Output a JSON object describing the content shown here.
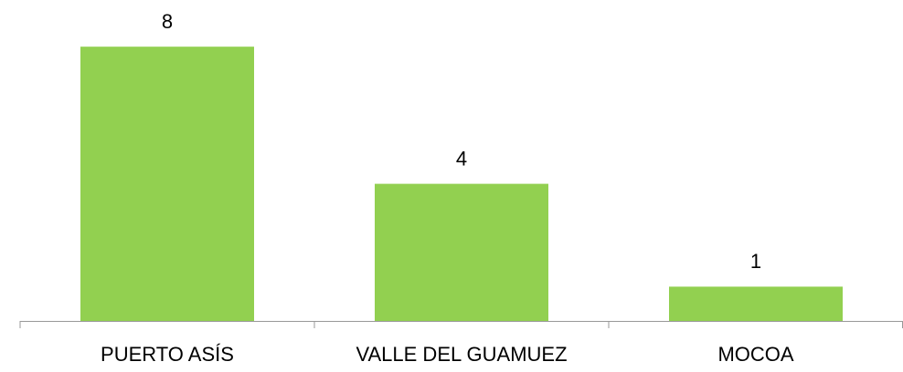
{
  "chart_data": {
    "type": "bar",
    "categories": [
      "PUERTO ASÍS",
      "VALLE DEL GUAMUEZ",
      "MOCOA"
    ],
    "values": [
      8,
      4,
      1
    ],
    "color": "#92d050"
  }
}
